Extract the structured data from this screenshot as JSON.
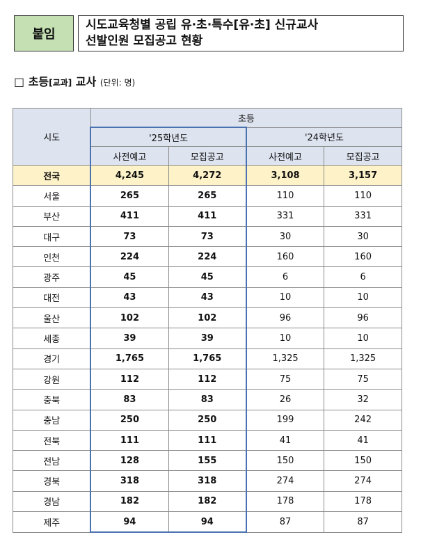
{
  "header": {
    "badge": "붙임",
    "title_lines": [
      "시도교육청별 공립 유·초·특수[유·초] 신규교사",
      "선발인원 모집공고 현황"
    ]
  },
  "section": {
    "marker": "□",
    "title": "초등",
    "bracket": "[교과]",
    "subject": "교사",
    "unit": "(단위: 명)"
  },
  "table": {
    "region_header": "시도",
    "group_header": "초등",
    "year_headers": [
      "'25학년도",
      "'24학년도"
    ],
    "sub_headers": [
      "사전예고",
      "모집공고",
      "사전예고",
      "모집공고"
    ],
    "rows": [
      [
        "전국",
        "4,245",
        "4,272",
        "3,108",
        "3,157"
      ],
      [
        "서울",
        "265",
        "265",
        "110",
        "110"
      ],
      [
        "부산",
        "411",
        "411",
        "331",
        "331"
      ],
      [
        "대구",
        "73",
        "73",
        "30",
        "30"
      ],
      [
        "인천",
        "224",
        "224",
        "160",
        "160"
      ],
      [
        "광주",
        "45",
        "45",
        "6",
        "6"
      ],
      [
        "대전",
        "43",
        "43",
        "10",
        "10"
      ],
      [
        "울산",
        "102",
        "102",
        "96",
        "96"
      ],
      [
        "세종",
        "39",
        "39",
        "10",
        "10"
      ],
      [
        "경기",
        "1,765",
        "1,765",
        "1,325",
        "1,325"
      ],
      [
        "강원",
        "112",
        "112",
        "75",
        "75"
      ],
      [
        "충북",
        "83",
        "83",
        "26",
        "32"
      ],
      [
        "충남",
        "250",
        "250",
        "199",
        "242"
      ],
      [
        "전북",
        "111",
        "111",
        "41",
        "41"
      ],
      [
        "전남",
        "128",
        "155",
        "150",
        "150"
      ],
      [
        "경북",
        "318",
        "318",
        "274",
        "274"
      ],
      [
        "경남",
        "182",
        "182",
        "178",
        "178"
      ],
      [
        "제주",
        "94",
        "94",
        "87",
        "87"
      ]
    ]
  }
}
